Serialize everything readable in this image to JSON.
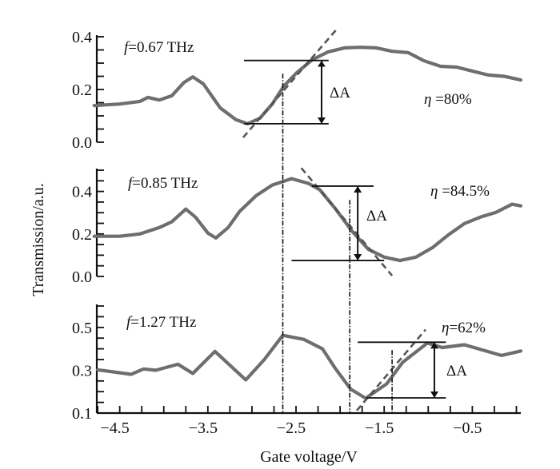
{
  "chart_data": {
    "type": "line",
    "xlabel": "Gate voltage/V",
    "ylabel": "Transmission/a.u.",
    "xlim": [
      -4.76,
      0.05
    ],
    "x_ticks": [
      -4.5,
      -3.5,
      -2.5,
      -1.5,
      -0.5
    ],
    "x_tick_labels": [
      "−4.5",
      "−3.5",
      "−2.5",
      "−1.5",
      "−0.5"
    ],
    "colors": {
      "curve": "#6e6e6e",
      "lines": "#111111"
    },
    "vertical_markers": [
      {
        "x": -2.65,
        "from_panel": 0,
        "from_y": 0.26
      },
      {
        "x": -1.89,
        "from_panel": 1,
        "from_y": 0.36
      }
    ],
    "panels": [
      {
        "label": "f=0.67 THz",
        "label_f": "f",
        "label_rest": "=0.67 THz",
        "eta": "η =80%",
        "eta_sym": "η",
        "eta_rest": " =80%",
        "delta": "ΔA",
        "ylim": [
          0.0,
          0.4
        ],
        "y_ticks": [
          0.0,
          0.2,
          0.4
        ],
        "y_tick_labels": [
          "0.0",
          "0.2",
          "0.4"
        ],
        "x": [
          -4.79,
          -4.5,
          -4.27,
          -4.18,
          -4.05,
          -3.91,
          -3.77,
          -3.67,
          -3.55,
          -3.36,
          -3.18,
          -3.05,
          -2.91,
          -2.77,
          -2.64,
          -2.5,
          -2.32,
          -2.14,
          -1.95,
          -1.77,
          -1.59,
          -1.41,
          -1.23,
          -1.05,
          -0.86,
          -0.68,
          -0.5,
          -0.32,
          -0.14,
          0.05
        ],
        "y": [
          0.139,
          0.145,
          0.155,
          0.17,
          0.16,
          0.176,
          0.227,
          0.248,
          0.221,
          0.13,
          0.085,
          0.07,
          0.091,
          0.145,
          0.212,
          0.261,
          0.312,
          0.342,
          0.358,
          0.36,
          0.358,
          0.345,
          0.34,
          0.309,
          0.288,
          0.285,
          0.27,
          0.255,
          0.25,
          0.236
        ],
        "tangent": [
          [
            -3.1,
            0.018
          ],
          [
            -2.05,
            0.424
          ]
        ],
        "delta_upper": {
          "y": 0.31,
          "x": [
            -3.09,
            -2.13
          ]
        },
        "delta_lower": {
          "y": 0.07,
          "x": [
            -3.09,
            -2.13
          ]
        },
        "arrow_x": -2.21
      },
      {
        "label": "f=0.85 THz",
        "label_f": "f",
        "label_rest": "=0.85 THz",
        "eta": "η =84.5%",
        "eta_sym": "η",
        "eta_rest": " =84.5%",
        "delta": "ΔA",
        "ylim": [
          0.0,
          0.5
        ],
        "y_ticks": [
          0.0,
          0.2,
          0.4
        ],
        "y_tick_labels": [
          "0.0",
          "0.2",
          "0.4"
        ],
        "x": [
          -4.79,
          -4.5,
          -4.27,
          -4.05,
          -3.91,
          -3.75,
          -3.64,
          -3.5,
          -3.41,
          -3.27,
          -3.14,
          -2.95,
          -2.77,
          -2.55,
          -2.36,
          -2.23,
          -2.05,
          -1.86,
          -1.68,
          -1.5,
          -1.32,
          -1.14,
          -0.95,
          -0.77,
          -0.59,
          -0.41,
          -0.23,
          -0.05,
          0.05
        ],
        "y": [
          0.189,
          0.189,
          0.2,
          0.23,
          0.257,
          0.317,
          0.279,
          0.204,
          0.181,
          0.23,
          0.306,
          0.381,
          0.43,
          0.46,
          0.438,
          0.408,
          0.317,
          0.211,
          0.128,
          0.091,
          0.075,
          0.091,
          0.136,
          0.196,
          0.249,
          0.279,
          0.302,
          0.34,
          0.332
        ],
        "tangent": [
          [
            -2.44,
            0.51
          ],
          [
            -1.41,
            0.004
          ]
        ],
        "delta_upper": {
          "y": 0.425,
          "x": [
            -2.32,
            -1.62
          ]
        },
        "delta_lower": {
          "y": 0.075,
          "x": [
            -2.55,
            -1.5
          ]
        },
        "arrow_x": -1.8
      },
      {
        "label": "f=1.27 THz",
        "label_f": "f",
        "label_rest": "=1.27 THz",
        "eta": "η=62%",
        "eta_sym": "η",
        "eta_rest": "=62%",
        "delta": "ΔA",
        "ylim": [
          0.1,
          0.6
        ],
        "y_ticks": [
          0.1,
          0.3,
          0.5
        ],
        "y_tick_labels": [
          "0.1",
          "0.3",
          "0.5"
        ],
        "x": [
          -4.75,
          -4.37,
          -4.23,
          -4.09,
          -3.84,
          -3.67,
          -3.42,
          -3.07,
          -2.86,
          -2.65,
          -2.41,
          -2.2,
          -2.06,
          -1.88,
          -1.71,
          -1.47,
          -1.29,
          -1.01,
          -0.84,
          -0.59,
          -0.17,
          0.05
        ],
        "y": [
          0.302,
          0.281,
          0.306,
          0.3,
          0.328,
          0.285,
          0.388,
          0.255,
          0.35,
          0.463,
          0.444,
          0.4,
          0.312,
          0.212,
          0.169,
          0.237,
          0.337,
          0.427,
          0.406,
          0.419,
          0.369,
          0.39
        ],
        "tangent": [
          [
            -1.81,
            0.112
          ],
          [
            -1.03,
            0.49
          ]
        ],
        "delta_upper": {
          "y": 0.431,
          "x": [
            -1.8,
            -0.8
          ]
        },
        "delta_lower": {
          "y": 0.171,
          "x": [
            -1.7,
            -0.8
          ]
        },
        "arrow_x": -0.93,
        "short_marker": {
          "x": -1.41,
          "from_y": 0.394
        }
      }
    ]
  }
}
